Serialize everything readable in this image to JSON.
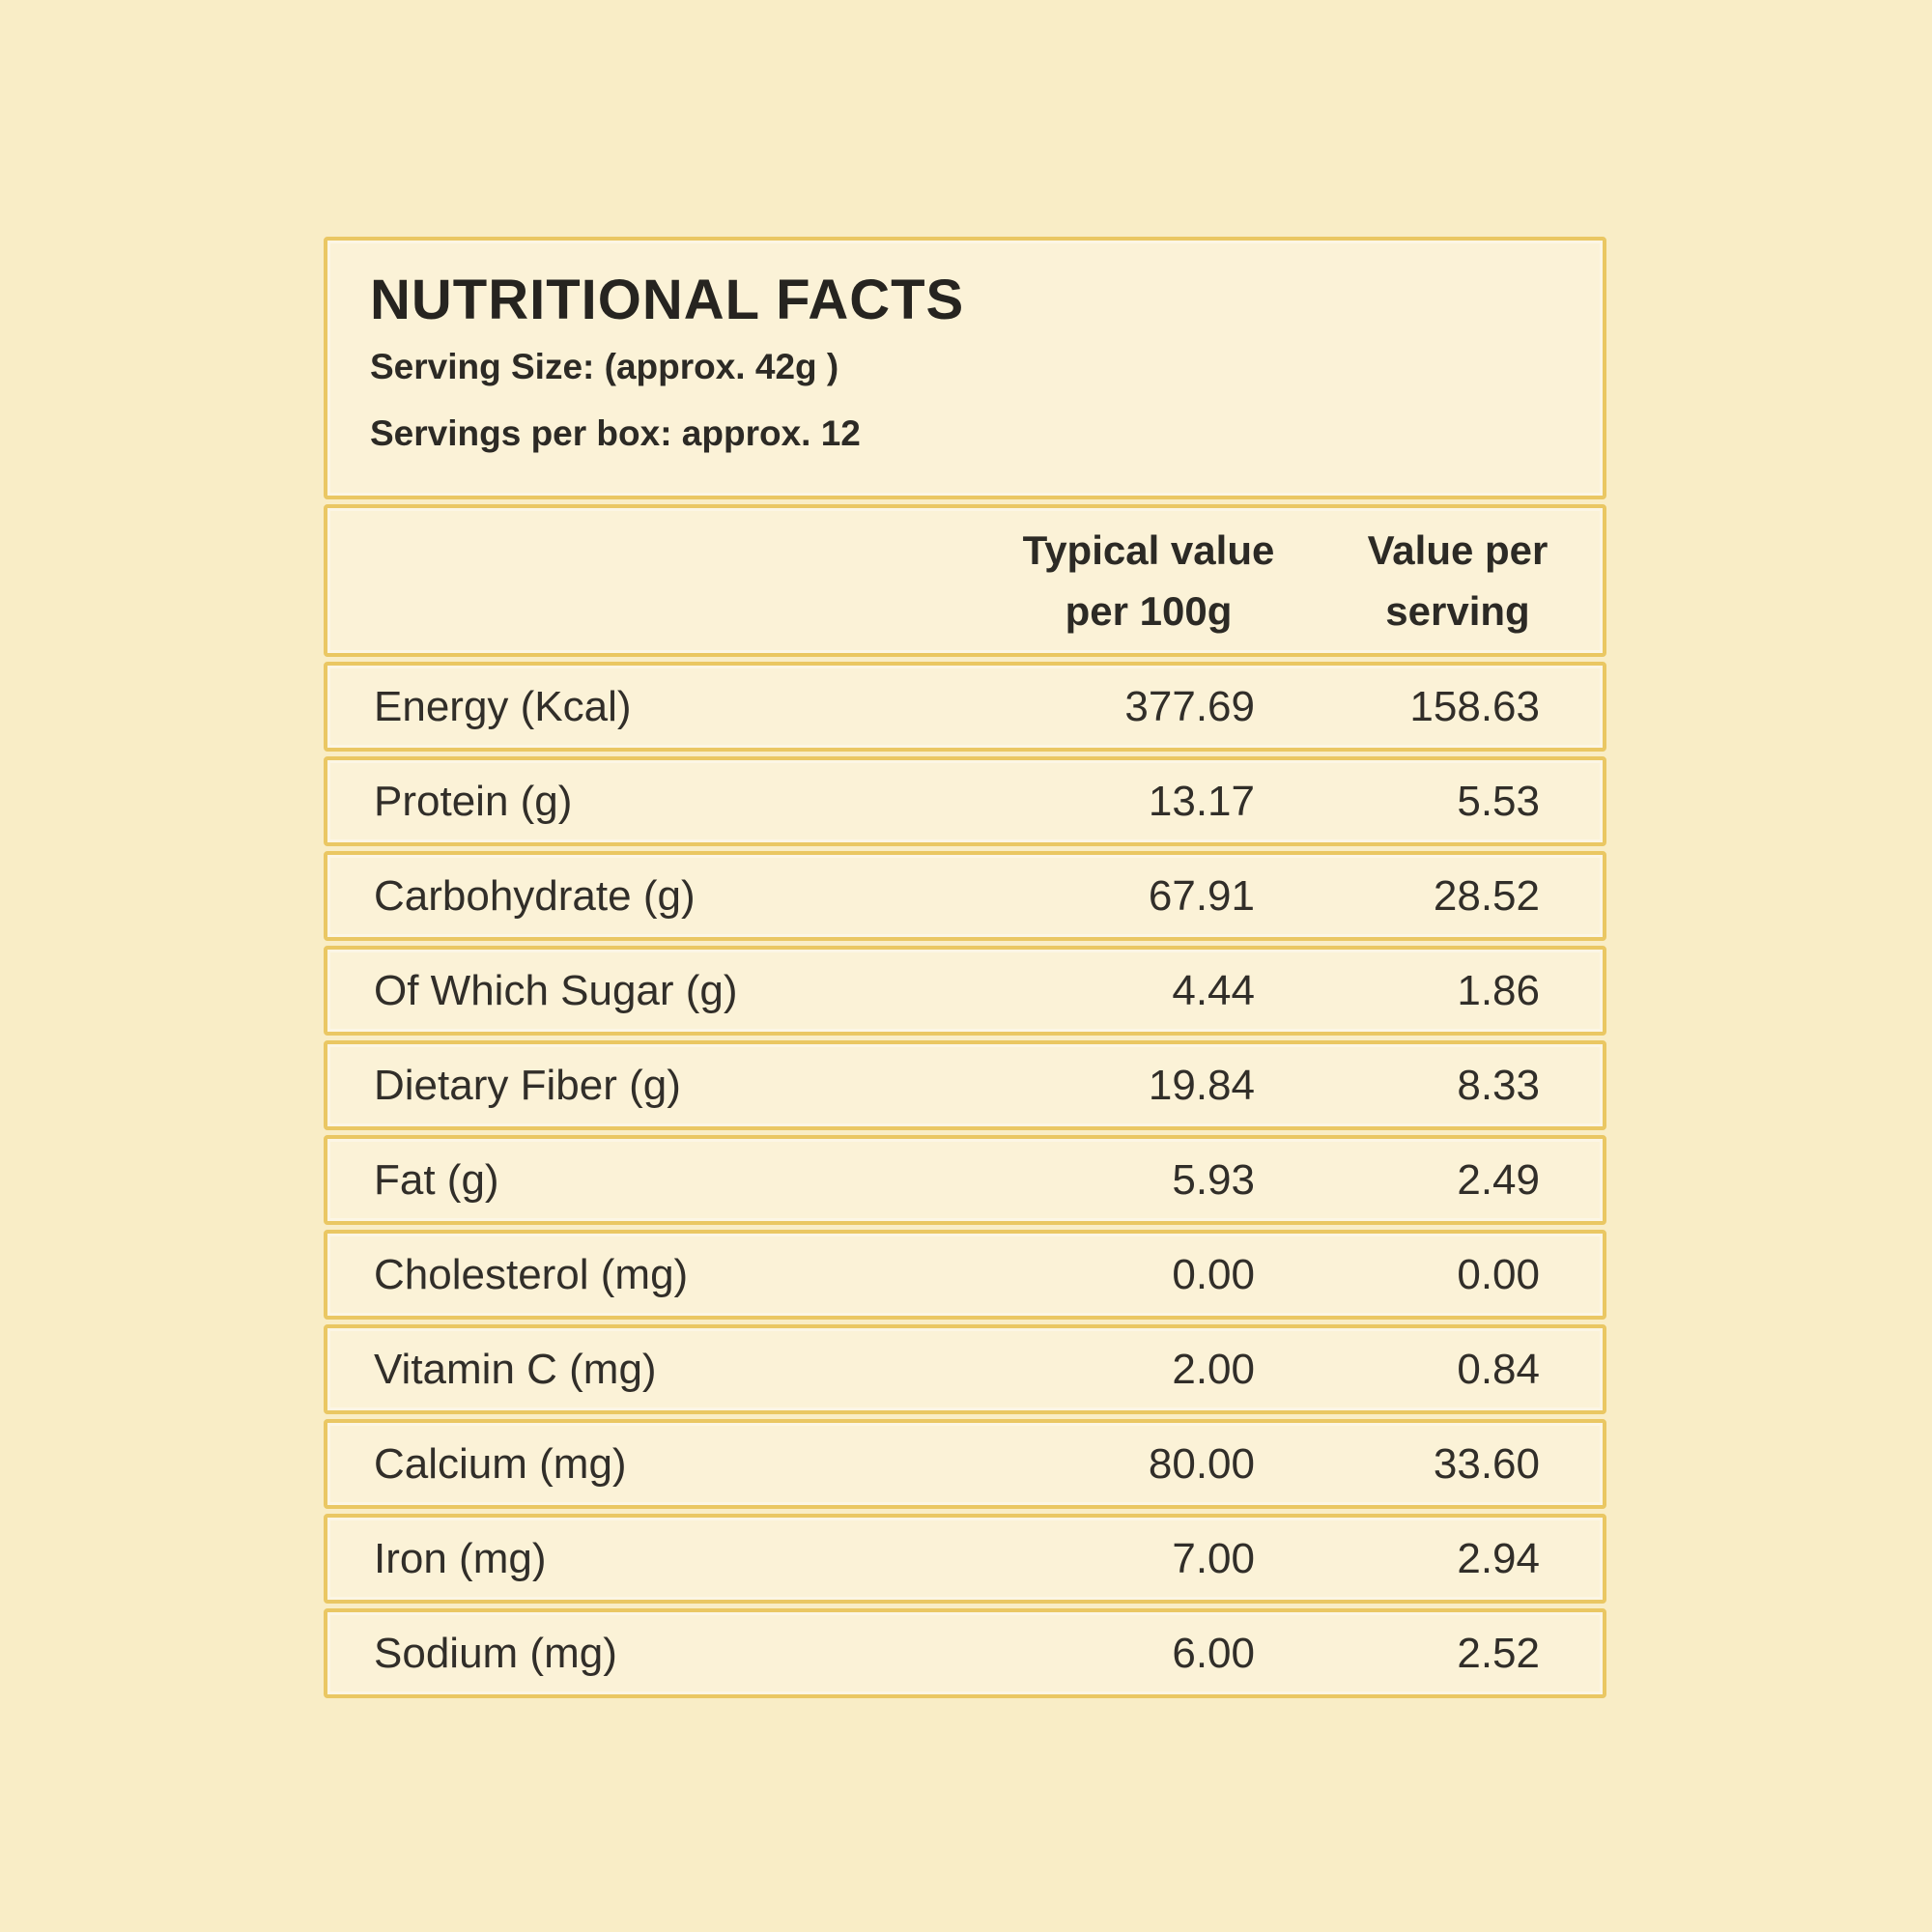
{
  "colors": {
    "page_background": "#f9edc6",
    "card_background": "#fbf2d7",
    "border": "#eac763",
    "text": "#2e2c27"
  },
  "title_block": {
    "title": "NUTRITIONAL FACTS",
    "serving_size": "Serving Size: (approx. 42g )",
    "servings_per_box": "Servings per box: approx. 12"
  },
  "table": {
    "headers": {
      "typical_value": "Typical value\nper 100g",
      "value_per_serving": "Value per\nserving"
    },
    "rows": [
      {
        "label": "Energy (Kcal)",
        "typical": "377.69",
        "serving": "158.63"
      },
      {
        "label": "Protein (g)",
        "typical": "13.17",
        "serving": "5.53"
      },
      {
        "label": "Carbohydrate (g)",
        "typical": "67.91",
        "serving": "28.52"
      },
      {
        "label": "Of Which Sugar (g)",
        "typical": "4.44",
        "serving": "1.86"
      },
      {
        "label": "Dietary Fiber (g)",
        "typical": "19.84",
        "serving": "8.33"
      },
      {
        "label": "Fat (g)",
        "typical": "5.93",
        "serving": "2.49"
      },
      {
        "label": "Cholesterol (mg)",
        "typical": "0.00",
        "serving": "0.00"
      },
      {
        "label": "Vitamin C (mg)",
        "typical": "2.00",
        "serving": "0.84"
      },
      {
        "label": "Calcium (mg)",
        "typical": "80.00",
        "serving": "33.60"
      },
      {
        "label": "Iron (mg)",
        "typical": "7.00",
        "serving": "2.94"
      },
      {
        "label": "Sodium (mg)",
        "typical": "6.00",
        "serving": "2.52"
      }
    ]
  }
}
